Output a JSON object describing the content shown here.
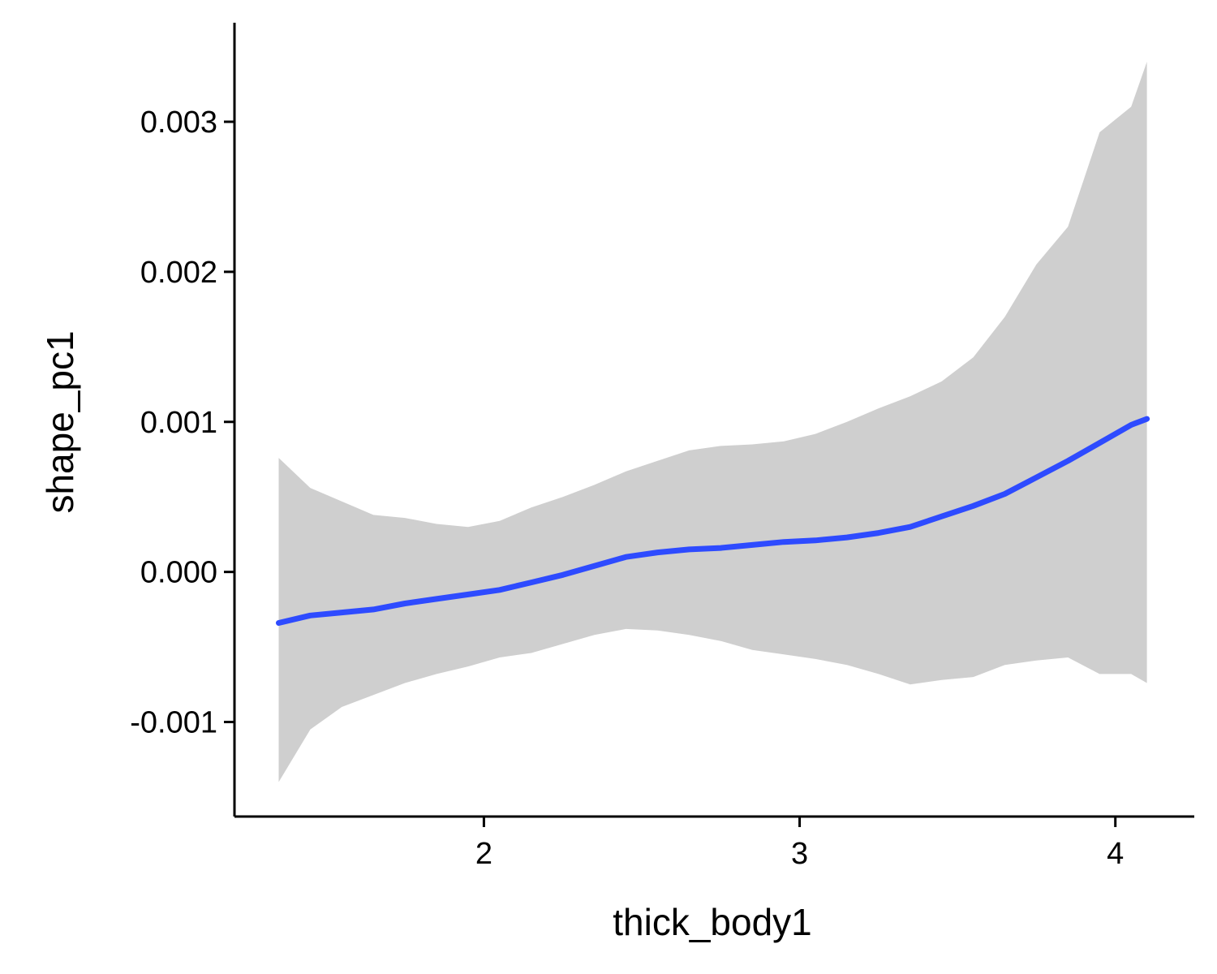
{
  "chart_data": {
    "type": "line",
    "title": "",
    "xlabel": "thick_body1",
    "ylabel": "shape_pc1",
    "xlim": [
      1.21,
      4.25
    ],
    "ylim": [
      -0.00163,
      0.00366
    ],
    "xticks": [
      2,
      3,
      4
    ],
    "yticks": [
      -0.001,
      0.0,
      0.001,
      0.002,
      0.003
    ],
    "xtick_labels": [
      "2",
      "3",
      "4"
    ],
    "ytick_labels": [
      "-0.001",
      "0.000",
      "0.001",
      "0.002",
      "0.003"
    ],
    "grid": false,
    "legend": "none",
    "colors": {
      "line": "#2E4BFF",
      "band": "#CFCFCF",
      "axis": "#000000"
    },
    "series": [
      {
        "kind": "smooth_fit",
        "x": [
          1.35,
          1.45,
          1.55,
          1.65,
          1.75,
          1.85,
          1.95,
          2.05,
          2.15,
          2.25,
          2.35,
          2.45,
          2.55,
          2.65,
          2.75,
          2.85,
          2.95,
          3.05,
          3.15,
          3.25,
          3.35,
          3.45,
          3.55,
          3.65,
          3.75,
          3.85,
          3.95,
          4.05,
          4.1
        ],
        "y": [
          -0.00034,
          -0.00029,
          -0.00027,
          -0.00025,
          -0.00021,
          -0.00018,
          -0.00015,
          -0.00012,
          -7e-05,
          -2e-05,
          4e-05,
          0.0001,
          0.00013,
          0.00015,
          0.00016,
          0.00018,
          0.0002,
          0.00021,
          0.00023,
          0.00026,
          0.0003,
          0.00037,
          0.00044,
          0.00052,
          0.00063,
          0.00074,
          0.00086,
          0.00098,
          0.00102
        ],
        "lower": [
          -0.0014,
          -0.00105,
          -0.0009,
          -0.00082,
          -0.00074,
          -0.00068,
          -0.00063,
          -0.00057,
          -0.00054,
          -0.00048,
          -0.00042,
          -0.00038,
          -0.00039,
          -0.00042,
          -0.00046,
          -0.00052,
          -0.00055,
          -0.00058,
          -0.00062,
          -0.00068,
          -0.00075,
          -0.00072,
          -0.0007,
          -0.00062,
          -0.00059,
          -0.00057,
          -0.00068,
          -0.00068,
          -0.00074
        ],
        "upper": [
          0.00076,
          0.00056,
          0.00047,
          0.00038,
          0.00036,
          0.00032,
          0.0003,
          0.00034,
          0.00043,
          0.0005,
          0.00058,
          0.00067,
          0.00074,
          0.00081,
          0.00084,
          0.00085,
          0.00087,
          0.00092,
          0.001,
          0.00109,
          0.00117,
          0.00127,
          0.00143,
          0.0017,
          0.00205,
          0.0023,
          0.00293,
          0.0031,
          0.0034
        ]
      }
    ]
  }
}
